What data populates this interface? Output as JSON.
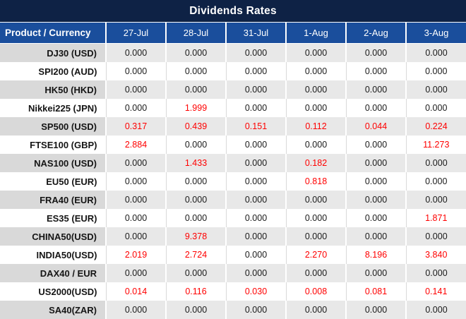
{
  "title": "Dividends Rates",
  "table": {
    "corner_header": "Product / Currency",
    "date_columns": [
      "27-Jul",
      "28-Jul",
      "31-Jul",
      "1-Aug",
      "2-Aug",
      "3-Aug"
    ],
    "zero_display": "0.000",
    "rows": [
      {
        "product": "DJ30 (USD)",
        "values": [
          "0.000",
          "0.000",
          "0.000",
          "0.000",
          "0.000",
          "0.000"
        ]
      },
      {
        "product": "SPI200 (AUD)",
        "values": [
          "0.000",
          "0.000",
          "0.000",
          "0.000",
          "0.000",
          "0.000"
        ]
      },
      {
        "product": "HK50 (HKD)",
        "values": [
          "0.000",
          "0.000",
          "0.000",
          "0.000",
          "0.000",
          "0.000"
        ]
      },
      {
        "product": "Nikkei225 (JPN)",
        "values": [
          "0.000",
          "1.999",
          "0.000",
          "0.000",
          "0.000",
          "0.000"
        ]
      },
      {
        "product": "SP500 (USD)",
        "values": [
          "0.317",
          "0.439",
          "0.151",
          "0.112",
          "0.044",
          "0.224"
        ]
      },
      {
        "product": "FTSE100 (GBP)",
        "values": [
          "2.884",
          "0.000",
          "0.000",
          "0.000",
          "0.000",
          "11.273"
        ]
      },
      {
        "product": "NAS100 (USD)",
        "values": [
          "0.000",
          "1.433",
          "0.000",
          "0.182",
          "0.000",
          "0.000"
        ]
      },
      {
        "product": "EU50 (EUR)",
        "values": [
          "0.000",
          "0.000",
          "0.000",
          "0.818",
          "0.000",
          "0.000"
        ]
      },
      {
        "product": "FRA40 (EUR)",
        "values": [
          "0.000",
          "0.000",
          "0.000",
          "0.000",
          "0.000",
          "0.000"
        ]
      },
      {
        "product": "ES35 (EUR)",
        "values": [
          "0.000",
          "0.000",
          "0.000",
          "0.000",
          "0.000",
          "1.871"
        ]
      },
      {
        "product": "CHINA50(USD)",
        "values": [
          "0.000",
          "9.378",
          "0.000",
          "0.000",
          "0.000",
          "0.000"
        ]
      },
      {
        "product": "INDIA50(USD)",
        "values": [
          "2.019",
          "2.724",
          "0.000",
          "2.270",
          "8.196",
          "3.840"
        ]
      },
      {
        "product": "DAX40 / EUR",
        "values": [
          "0.000",
          "0.000",
          "0.000",
          "0.000",
          "0.000",
          "0.000"
        ]
      },
      {
        "product": "US2000(USD)",
        "values": [
          "0.014",
          "0.116",
          "0.030",
          "0.008",
          "0.081",
          "0.141"
        ]
      },
      {
        "product": "SA40(ZAR)",
        "values": [
          "0.000",
          "0.000",
          "0.000",
          "0.000",
          "0.000",
          "0.000"
        ]
      }
    ]
  },
  "colors": {
    "title_bg": "#0e2245",
    "header_bg": "#1a4e9c",
    "header_text": "#ffffff",
    "row_gray_label_bg": "#d9d9d9",
    "row_gray_value_bg": "#e8e8e8",
    "row_white_bg": "#ffffff",
    "grid_line": "#d9d9d9",
    "zero_text": "#1a1a1a",
    "nonzero_text": "#ff0000"
  }
}
